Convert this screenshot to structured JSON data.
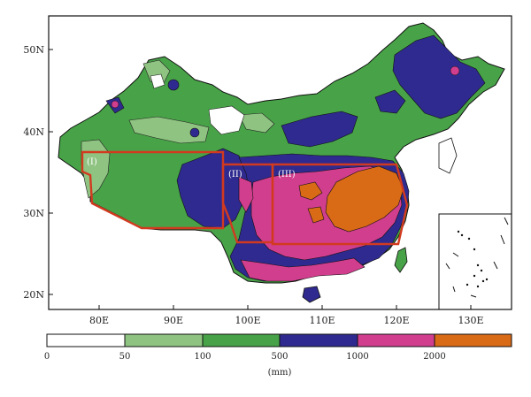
{
  "map": {
    "lat_labels": [
      "50N",
      "40N",
      "30N",
      "20N"
    ],
    "lon_labels": [
      "80E",
      "90E",
      "100E",
      "110E",
      "120E",
      "130E"
    ],
    "regions": [
      "(I)",
      "(II)",
      "(III)"
    ],
    "colors": {
      "c0": "#ffffff",
      "c1": "#8fc381",
      "c2": "#48a348",
      "c3": "#2f2a8f",
      "c4": "#d23e8e",
      "c5": "#d96a16",
      "region_outline": "#d23a1f"
    }
  },
  "legend": {
    "tick_labels": [
      "0",
      "50",
      "100",
      "500",
      "1000",
      "2000"
    ],
    "unit": "(mm)"
  }
}
